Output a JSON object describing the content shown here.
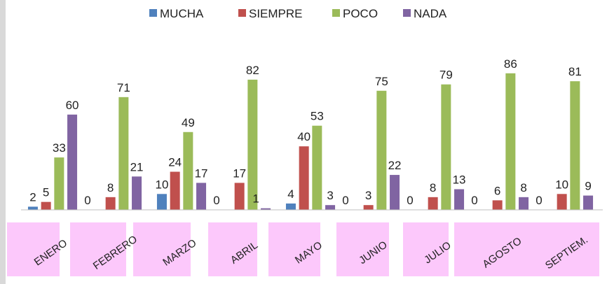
{
  "chart_data": {
    "type": "bar",
    "categories": [
      "ENERO",
      "FEBRERO",
      "MARZO",
      "ABRIL",
      "MAYO",
      "JUNIO",
      "JULIO",
      "AGOSTO",
      "SEPTIEM."
    ],
    "series": [
      {
        "name": "MUCHA",
        "color": "#4f81bd",
        "values": [
          2,
          0,
          10,
          0,
          4,
          0,
          0,
          0,
          0
        ]
      },
      {
        "name": "SIEMPRE",
        "color": "#c0504d",
        "values": [
          5,
          8,
          24,
          17,
          40,
          3,
          8,
          6,
          10
        ]
      },
      {
        "name": "POCO",
        "color": "#9bbb59",
        "values": [
          33,
          71,
          49,
          82,
          53,
          75,
          79,
          86,
          81
        ]
      },
      {
        "name": "NADA",
        "color": "#8064a2",
        "values": [
          60,
          21,
          17,
          1,
          3,
          22,
          13,
          8,
          9
        ]
      }
    ],
    "legend": "top"
  }
}
